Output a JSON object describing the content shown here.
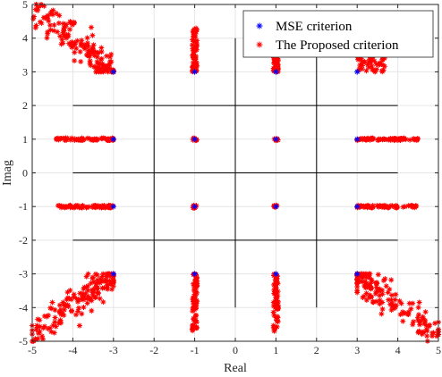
{
  "chart_data": {
    "type": "scatter",
    "xlabel": "Real",
    "ylabel": "Imag",
    "xlim": [
      -5,
      5
    ],
    "ylim": [
      -5,
      5
    ],
    "xticks": [
      "-5",
      "-4",
      "-3",
      "-2",
      "-1",
      "0",
      "1",
      "2",
      "3",
      "4",
      "5"
    ],
    "yticks": [
      "-5",
      "-4",
      "-3",
      "-2",
      "-1",
      "0",
      "1",
      "2",
      "3",
      "4",
      "5"
    ],
    "grid": true,
    "legend_position": "top-right",
    "constellation_lines": {
      "horizontal": [
        [
          -4,
          4,
          2
        ],
        [
          -4,
          4,
          0
        ],
        [
          -4,
          4,
          -2
        ]
      ],
      "vertical": [
        [
          -2,
          -4,
          4
        ],
        [
          0,
          -4,
          4
        ],
        [
          2,
          -4,
          4
        ]
      ]
    },
    "series": [
      {
        "name": "MSE criterion",
        "marker": "*",
        "color": "#0000ff",
        "points": [
          [
            -3,
            3
          ],
          [
            -1,
            3
          ],
          [
            1,
            3
          ],
          [
            3,
            3
          ],
          [
            -3,
            1
          ],
          [
            -1,
            1
          ],
          [
            1,
            1
          ],
          [
            3,
            1
          ],
          [
            -3,
            -1
          ],
          [
            -1,
            -1
          ],
          [
            1,
            -1
          ],
          [
            3,
            -1
          ],
          [
            -3,
            -3
          ],
          [
            -1,
            -3
          ],
          [
            1,
            -3
          ],
          [
            3,
            -3
          ]
        ]
      },
      {
        "name": "The Proposed criterion",
        "marker": "*",
        "color": "#ff0000",
        "clusters": [
          {
            "center": [
              -3,
              3
            ],
            "spread": "diagonal-out",
            "extent": [
              -5,
              5
            ]
          },
          {
            "center": [
              -1,
              3
            ],
            "spread": "vertical",
            "extent": [
              3,
              4.3
            ]
          },
          {
            "center": [
              1,
              3
            ],
            "spread": "vertical",
            "extent": [
              3,
              3.7
            ]
          },
          {
            "center": [
              3,
              3
            ],
            "spread": "horizontal-blob",
            "extent": [
              3,
              3.7
            ]
          },
          {
            "center": [
              -3,
              1
            ],
            "spread": "horizontal",
            "extent": [
              -4.4,
              -2.9
            ]
          },
          {
            "center": [
              -1,
              1
            ],
            "spread": "tight"
          },
          {
            "center": [
              1,
              1
            ],
            "spread": "tight"
          },
          {
            "center": [
              3,
              1
            ],
            "spread": "horizontal",
            "extent": [
              3,
              4.5
            ]
          },
          {
            "center": [
              -3,
              -1
            ],
            "spread": "horizontal",
            "extent": [
              -4.4,
              -3
            ]
          },
          {
            "center": [
              -1,
              -1
            ],
            "spread": "tight"
          },
          {
            "center": [
              1,
              -1
            ],
            "spread": "tight"
          },
          {
            "center": [
              3,
              -1
            ],
            "spread": "horizontal",
            "extent": [
              3,
              4.5
            ]
          },
          {
            "center": [
              -3,
              -3
            ],
            "spread": "diagonal-out",
            "extent": [
              -5,
              -5
            ]
          },
          {
            "center": [
              -1,
              -3
            ],
            "spread": "vertical",
            "extent": [
              -4.7,
              -3
            ]
          },
          {
            "center": [
              1,
              -3
            ],
            "spread": "vertical",
            "extent": [
              -4.7,
              -3
            ]
          },
          {
            "center": [
              3,
              -3
            ],
            "spread": "diagonal-out",
            "extent": [
              5,
              -4.8
            ]
          }
        ]
      }
    ]
  },
  "colors": {
    "mse": "#0000ff",
    "proposed": "#ff0000",
    "grid": "#e6e6e6",
    "axis": "#262626"
  }
}
